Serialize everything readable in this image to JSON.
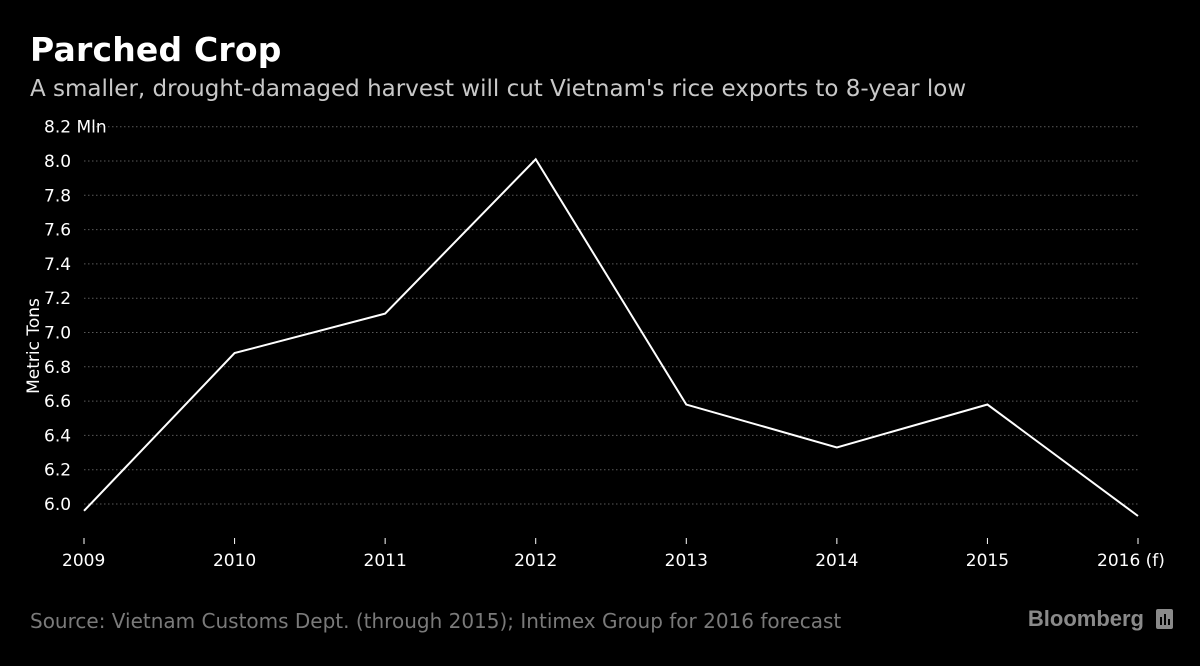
{
  "header": {
    "title": "Parched Crop",
    "subtitle": "A smaller, drought-damaged harvest will cut Vietnam's rice exports to 8-year low"
  },
  "footer": {
    "source": "Source: Vietnam Customs Dept. (through 2015); Intimex Group for 2016 forecast",
    "brand": "Bloomberg"
  },
  "colors": {
    "background": "#000000",
    "line": "#ffffff",
    "grid": "#5a5a5a",
    "source_text": "#7a7a7a"
  },
  "chart_data": {
    "type": "line",
    "title": "Parched Crop",
    "subtitle": "A smaller, drought-damaged harvest will cut Vietnam's rice exports to 8-year low",
    "xlabel": "",
    "ylabel": "Metric Tons",
    "x": [
      "2009",
      "2010",
      "2011",
      "2012",
      "2013",
      "2014",
      "2015",
      "2016 (f)"
    ],
    "series": [
      {
        "values": [
          5.96,
          6.88,
          7.11,
          8.01,
          6.58,
          6.33,
          6.58,
          5.93
        ]
      }
    ],
    "ylim": [
      5.8,
      8.2
    ],
    "yticks": [
      6.0,
      6.2,
      6.4,
      6.6,
      6.8,
      7.0,
      7.2,
      7.4,
      7.6,
      7.8,
      8.0,
      8.2
    ],
    "ytick_labels": [
      "6.0",
      "6.2",
      "6.4",
      "6.6",
      "6.8",
      "7.0",
      "7.2",
      "7.4",
      "7.6",
      "7.8",
      "8.0",
      "8.2 Mln"
    ],
    "grid": "horizontal dotted",
    "legend": "none"
  }
}
